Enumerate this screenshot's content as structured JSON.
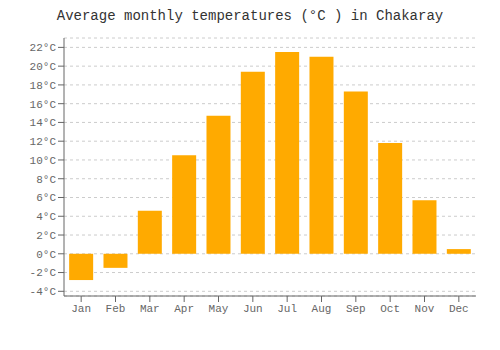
{
  "chart_data": {
    "type": "bar",
    "title": "Average monthly temperatures (°C ) in Chakaray",
    "categories": [
      "Jan",
      "Feb",
      "Mar",
      "Apr",
      "May",
      "Jun",
      "Jul",
      "Aug",
      "Sep",
      "Oct",
      "Nov",
      "Dec"
    ],
    "values": [
      -2.8,
      -1.5,
      4.6,
      10.5,
      14.7,
      19.4,
      21.5,
      21.0,
      17.3,
      11.8,
      5.7,
      0.5
    ],
    "color": "#FFAA00",
    "ylim": [
      -4.5,
      23
    ],
    "yticks": [
      {
        "value": -4,
        "label": "-4°C"
      },
      {
        "value": -2,
        "label": "-2°C"
      },
      {
        "value": 0,
        "label": "0°C"
      },
      {
        "value": 2,
        "label": "2°C"
      },
      {
        "value": 4,
        "label": "4°C"
      },
      {
        "value": 6,
        "label": "6°C"
      },
      {
        "value": 8,
        "label": "8°C"
      },
      {
        "value": 10,
        "label": "10°C"
      },
      {
        "value": 12,
        "label": "12°C"
      },
      {
        "value": 14,
        "label": "14°C"
      },
      {
        "value": 16,
        "label": "16°C"
      },
      {
        "value": 18,
        "label": "18°C"
      },
      {
        "value": 20,
        "label": "20°C"
      },
      {
        "value": 22,
        "label": "22°C"
      }
    ],
    "grid": true
  }
}
